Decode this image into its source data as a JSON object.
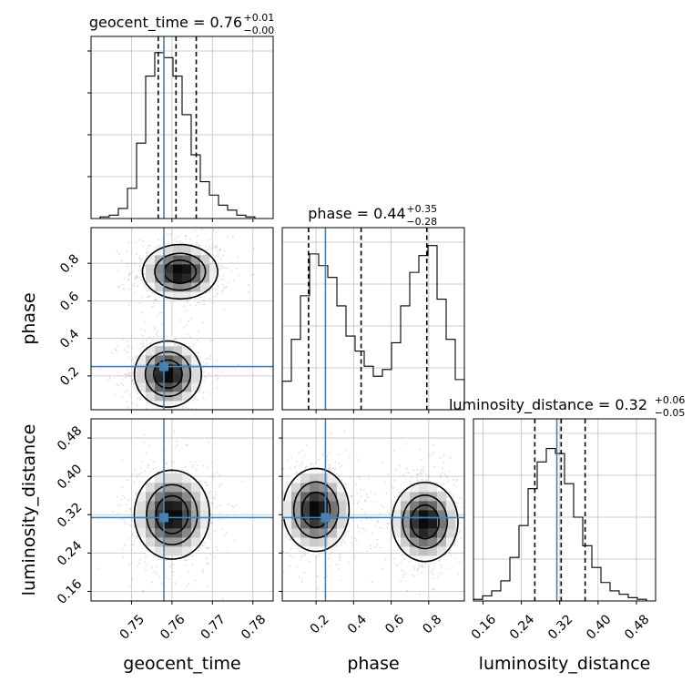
{
  "chart_data": {
    "type": "corner",
    "parameters": [
      {
        "name": "geocent_time",
        "label": "geocent_time",
        "range": [
          0.74,
          0.785
        ],
        "ticks": [
          0.75,
          0.76,
          0.77,
          0.78
        ],
        "tick_labels": [
          "0.75",
          "0.76",
          "0.77",
          "0.78"
        ],
        "truth": 0.758,
        "quantiles": [
          0.7566,
          0.761,
          0.766
        ]
      },
      {
        "name": "phase",
        "label": "phase",
        "range": [
          0.02,
          0.99
        ],
        "ticks": [
          0.2,
          0.4,
          0.6,
          0.8
        ],
        "tick_labels": [
          "0.2",
          "0.4",
          "0.6",
          "0.8"
        ],
        "truth": 0.25,
        "quantiles": [
          0.16,
          0.44,
          0.79
        ]
      },
      {
        "name": "luminosity_distance",
        "label": "luminosity_distance",
        "range": [
          0.14,
          0.52
        ],
        "ticks": [
          0.16,
          0.24,
          0.32,
          0.4,
          0.48
        ],
        "tick_labels": [
          "0.16",
          "0.24",
          "0.32",
          "0.40",
          "0.48"
        ],
        "truth": 0.314,
        "quantiles": [
          0.268,
          0.323,
          0.373
        ]
      }
    ],
    "titles": [
      {
        "text": "geocent_time = 0.76",
        "sup": "+0.01",
        "sub": "−0.00"
      },
      {
        "text": "phase = 0.44",
        "sup": "+0.35",
        "sub": "−0.28"
      },
      {
        "text": "luminosity_distance = 0.32",
        "sup": "+0.06",
        "sub": "−0.05"
      }
    ],
    "histograms": {
      "geocent_time": [
        0.0,
        0.01,
        0.02,
        0.06,
        0.18,
        0.45,
        0.85,
        0.99,
        0.96,
        0.85,
        0.62,
        0.38,
        0.22,
        0.14,
        0.08,
        0.05,
        0.02,
        0.01,
        0.0,
        0.0
      ],
      "phase": [
        0.17,
        0.42,
        0.68,
        0.93,
        0.86,
        0.79,
        0.62,
        0.44,
        0.35,
        0.26,
        0.2,
        0.24,
        0.4,
        0.62,
        0.82,
        0.92,
        0.98,
        0.66,
        0.42,
        0.18
      ],
      "luminosity_distance": [
        0.01,
        0.03,
        0.06,
        0.12,
        0.26,
        0.45,
        0.67,
        0.83,
        0.91,
        0.88,
        0.7,
        0.5,
        0.33,
        0.2,
        0.11,
        0.06,
        0.04,
        0.02,
        0.01,
        0.0
      ]
    },
    "hist_yticks": [
      0.25,
      0.5,
      0.75,
      1.0
    ],
    "density": {
      "phase_vs_geocent_time": {
        "modes": [
          {
            "x": 0.762,
            "y": 0.755,
            "sx": 0.0045,
            "sy": 0.07,
            "w": 1.0
          },
          {
            "x": 0.759,
            "y": 0.21,
            "sx": 0.004,
            "sy": 0.085,
            "w": 1.0
          }
        ]
      },
      "luminosity_distance_vs_geocent_time": {
        "modes": [
          {
            "x": 0.76,
            "y": 0.32,
            "sx": 0.0045,
            "sy": 0.045,
            "w": 1.0
          }
        ]
      },
      "luminosity_distance_vs_phase": {
        "modes": [
          {
            "x": 0.2,
            "y": 0.33,
            "sx": 0.085,
            "sy": 0.042,
            "w": 1.0
          },
          {
            "x": 0.78,
            "y": 0.305,
            "sx": 0.085,
            "sy": 0.04,
            "w": 1.0
          }
        ]
      }
    },
    "truth_color": "#4682b4",
    "grid": true
  }
}
